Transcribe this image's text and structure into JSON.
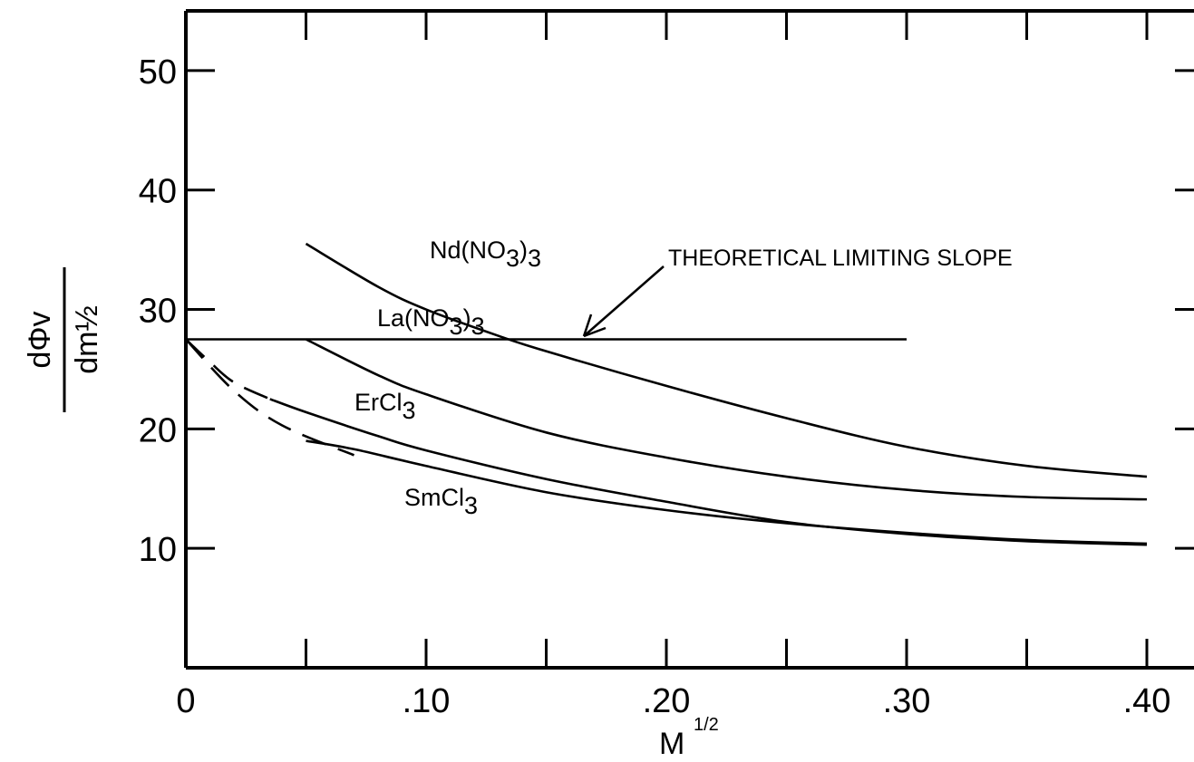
{
  "chart_data": {
    "type": "line",
    "xlabel": "M",
    "xlabel_exponent": "1/2",
    "ylabel_numerator": "dΦv",
    "ylabel_denominator": "dm½",
    "xlim": [
      0,
      0.4
    ],
    "ylim": [
      0,
      55
    ],
    "grid": false,
    "x_ticks": [
      0,
      0.05,
      0.1,
      0.15,
      0.2,
      0.25,
      0.3,
      0.35,
      0.4
    ],
    "x_tick_labels": [
      {
        "x": 0,
        "label": "0"
      },
      {
        "x": 0.1,
        "label": ".10"
      },
      {
        "x": 0.2,
        "label": ".20"
      },
      {
        "x": 0.3,
        "label": ".30"
      },
      {
        "x": 0.4,
        "label": ".40"
      }
    ],
    "y_ticks": [
      10,
      20,
      30,
      40,
      50
    ],
    "y_tick_labels": [
      "10",
      "20",
      "30",
      "40",
      "50"
    ],
    "series": [
      {
        "name": "Nd(NO3)3",
        "label_main": "Nd(NO",
        "label_sub": "3",
        "label_tail": ")",
        "label_sub2": "3",
        "x": [
          0.05,
          0.08,
          0.1,
          0.13,
          0.15,
          0.2,
          0.25,
          0.3,
          0.35,
          0.4
        ],
        "y": [
          35.5,
          31.9,
          30.0,
          27.8,
          26.5,
          23.6,
          20.9,
          18.5,
          16.9,
          16.0
        ],
        "dashed_x": [],
        "dashed_y": []
      },
      {
        "name": "La(NO3)3",
        "label_main": "La(NO",
        "label_sub": "3",
        "label_tail": ")",
        "label_sub2": "3",
        "x": [
          0.05,
          0.08,
          0.1,
          0.15,
          0.2,
          0.25,
          0.3,
          0.35,
          0.4
        ],
        "y": [
          27.5,
          24.5,
          22.9,
          19.7,
          17.6,
          16.0,
          14.9,
          14.3,
          14.1
        ],
        "dashed_x": [],
        "dashed_y": []
      },
      {
        "name": "ErCl3",
        "label_main": "ErCl",
        "label_sub": "3",
        "label_tail": "",
        "label_sub2": "",
        "x": [
          0.035,
          0.05,
          0.08,
          0.1,
          0.15,
          0.2,
          0.25,
          0.3,
          0.35,
          0.4
        ],
        "y": [
          22.5,
          21.4,
          19.4,
          18.2,
          15.8,
          13.9,
          12.2,
          11.2,
          10.6,
          10.3
        ],
        "dashed_x": [
          0,
          0.01,
          0.02,
          0.035
        ],
        "dashed_y": [
          27.5,
          25.6,
          23.9,
          22.5
        ]
      },
      {
        "name": "SmCl3",
        "label_main": "SmCl",
        "label_sub": "3",
        "label_tail": "",
        "label_sub2": "",
        "x": [
          0.05,
          0.07,
          0.1,
          0.15,
          0.2,
          0.25,
          0.3,
          0.35,
          0.4
        ],
        "y": [
          19.0,
          18.3,
          16.9,
          14.7,
          13.2,
          12.1,
          11.3,
          10.7,
          10.4
        ],
        "dashed_x": [
          0,
          0.02,
          0.04,
          0.07
        ],
        "dashed_y": [
          27.5,
          23.2,
          20.3,
          17.8
        ]
      }
    ],
    "theoretical_limiting_slope": {
      "label": "THEORETICAL LIMITING SLOPE",
      "y": 27.5,
      "x_start": 0,
      "x_end": 0.3
    }
  }
}
